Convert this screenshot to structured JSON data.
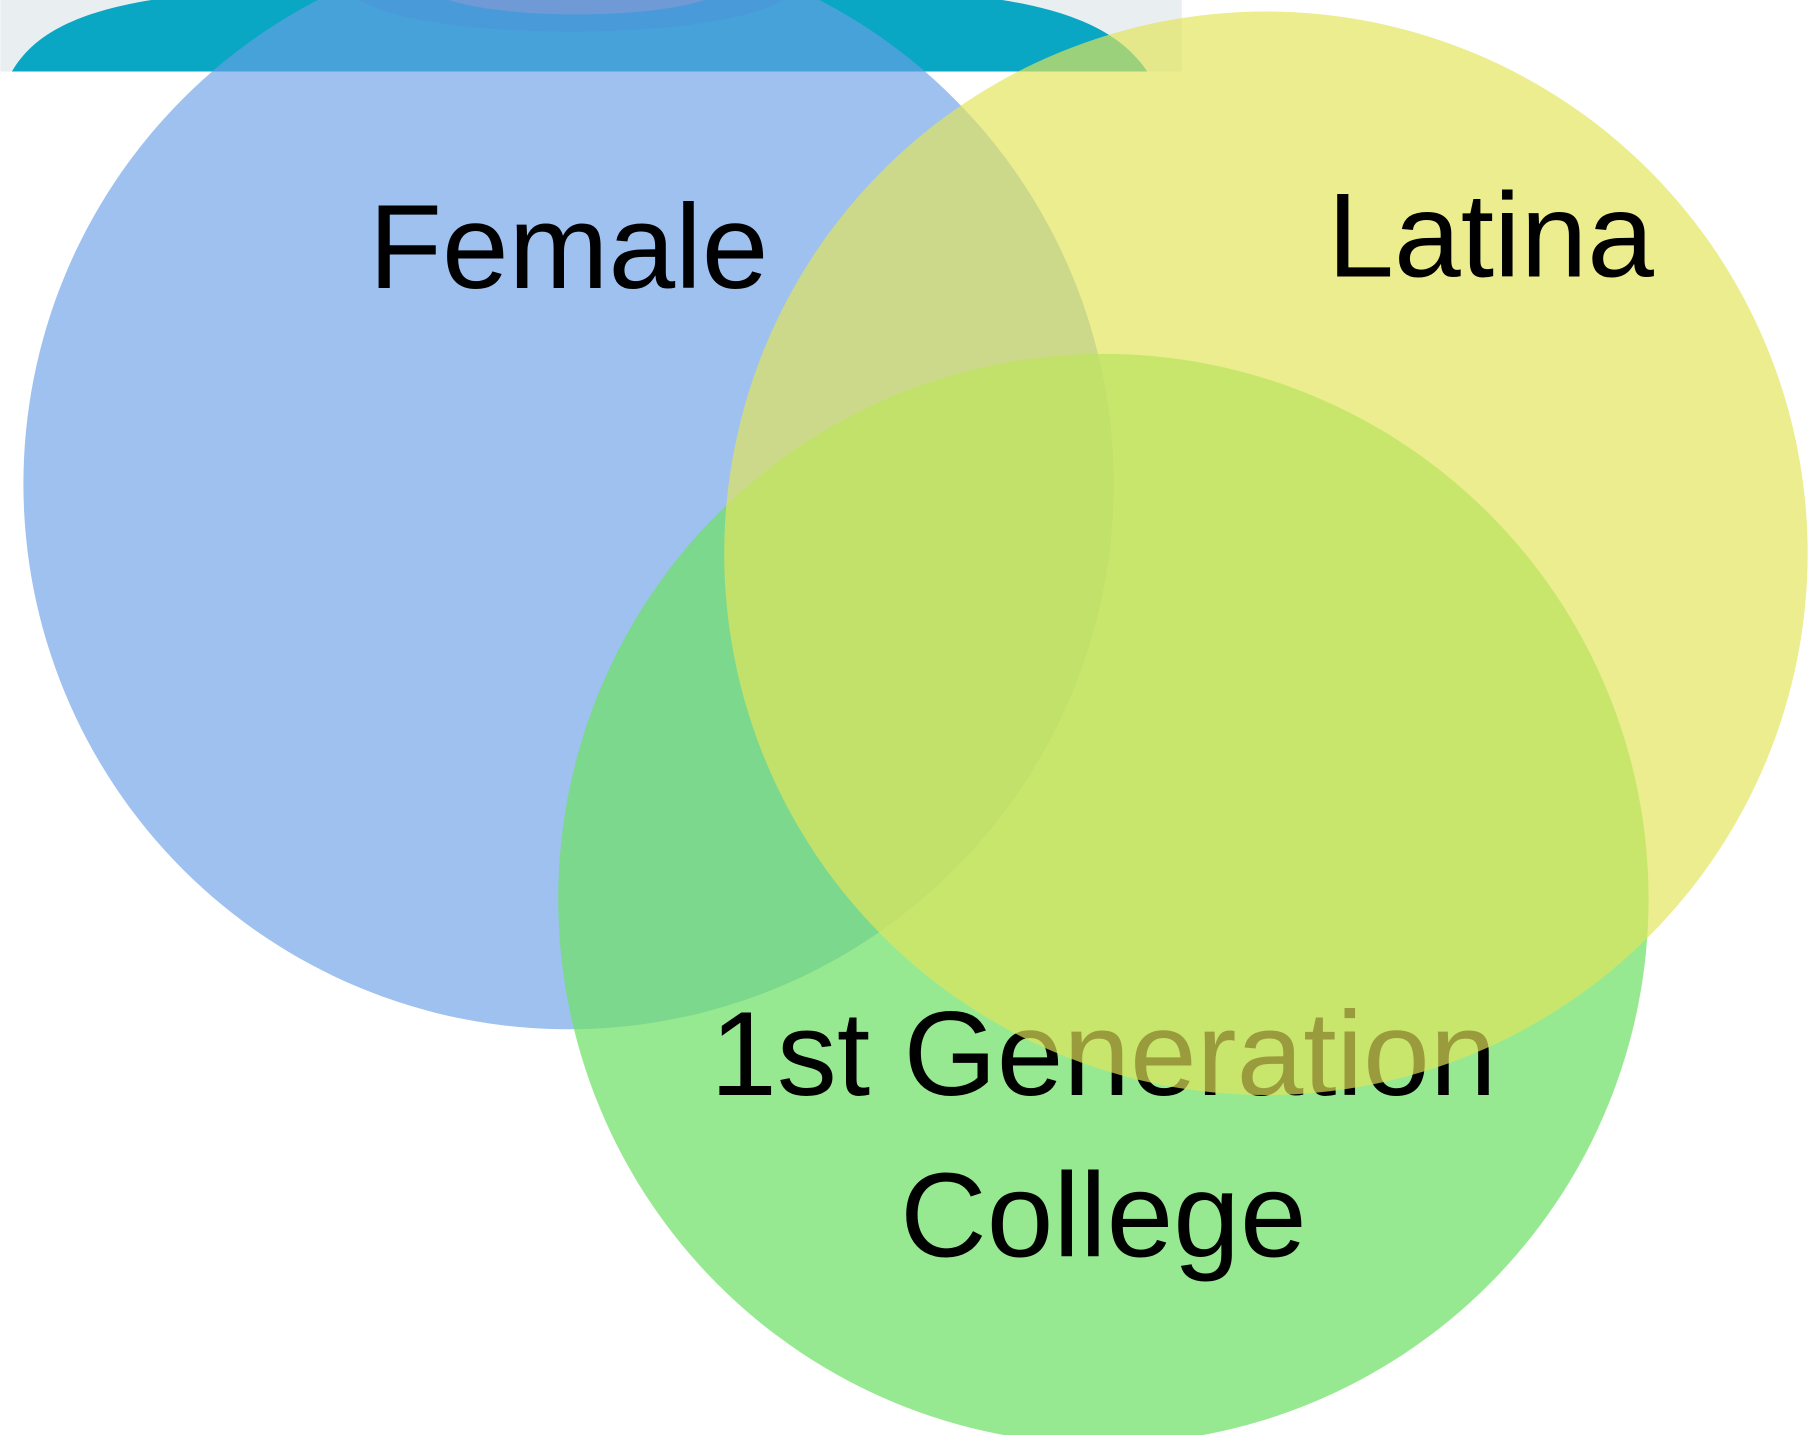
{
  "circles": [
    {
      "label": "Female"
    },
    {
      "label": "Latina"
    },
    {
      "label_lines": [
        "1st Generation",
        "College"
      ]
    }
  ]
}
